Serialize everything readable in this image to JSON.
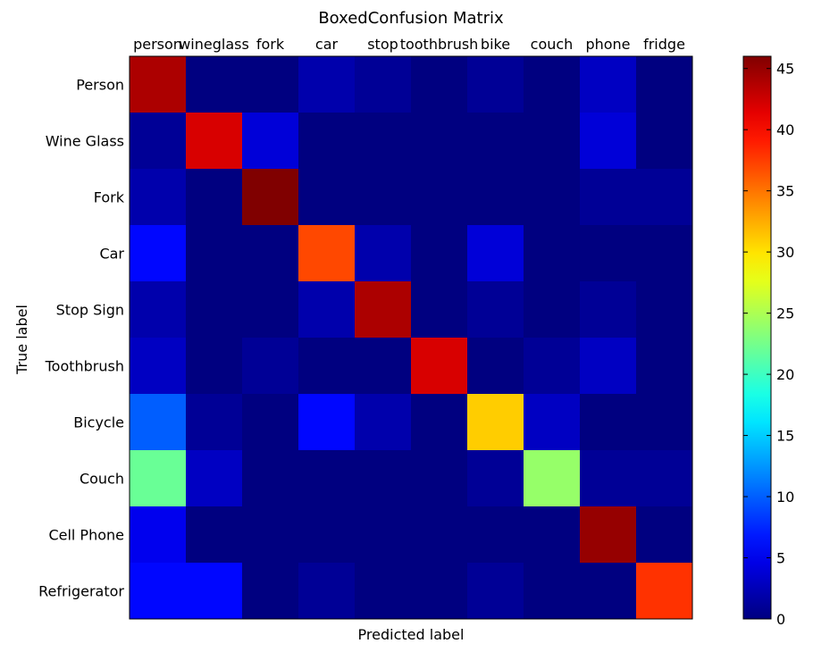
{
  "chart_data": {
    "type": "heatmap",
    "title": "BoxedConfusion Matrix",
    "xlabel": "Predicted label",
    "ylabel": "True label",
    "x_categories": [
      "person",
      "wineglass",
      "fork",
      "car",
      "stop",
      "toothbrush",
      "bike",
      "couch",
      "phone",
      "fridge"
    ],
    "y_categories": [
      "Person",
      "Wine Glass",
      "Fork",
      "Car",
      "Stop Sign",
      "Toothbrush",
      "Bicycle",
      "Couch",
      "Cell Phone",
      "Refrigerator"
    ],
    "values": [
      [
        44,
        0,
        0,
        2,
        1,
        0,
        1,
        0,
        3,
        0
      ],
      [
        1,
        42,
        4,
        0,
        0,
        0,
        0,
        0,
        4,
        0
      ],
      [
        2,
        0,
        46,
        0,
        0,
        0,
        0,
        0,
        1,
        1
      ],
      [
        6,
        0,
        0,
        37,
        2,
        0,
        4,
        0,
        0,
        0
      ],
      [
        2,
        0,
        0,
        2,
        44,
        0,
        1,
        0,
        1,
        0
      ],
      [
        3,
        0,
        1,
        0,
        0,
        42,
        0,
        1,
        3,
        0
      ],
      [
        10,
        1,
        0,
        6,
        2,
        0,
        31,
        3,
        0,
        0
      ],
      [
        22,
        3,
        0,
        0,
        0,
        0,
        1,
        24,
        1,
        1
      ],
      [
        5,
        0,
        0,
        0,
        0,
        0,
        0,
        0,
        45,
        0
      ],
      [
        6,
        6,
        0,
        1,
        0,
        0,
        1,
        0,
        0,
        38
      ]
    ],
    "colorbar": {
      "min": 0,
      "max": 46,
      "ticks": [
        0,
        5,
        10,
        15,
        20,
        25,
        30,
        35,
        40,
        45
      ]
    },
    "colormap": "jet",
    "grid": false
  }
}
